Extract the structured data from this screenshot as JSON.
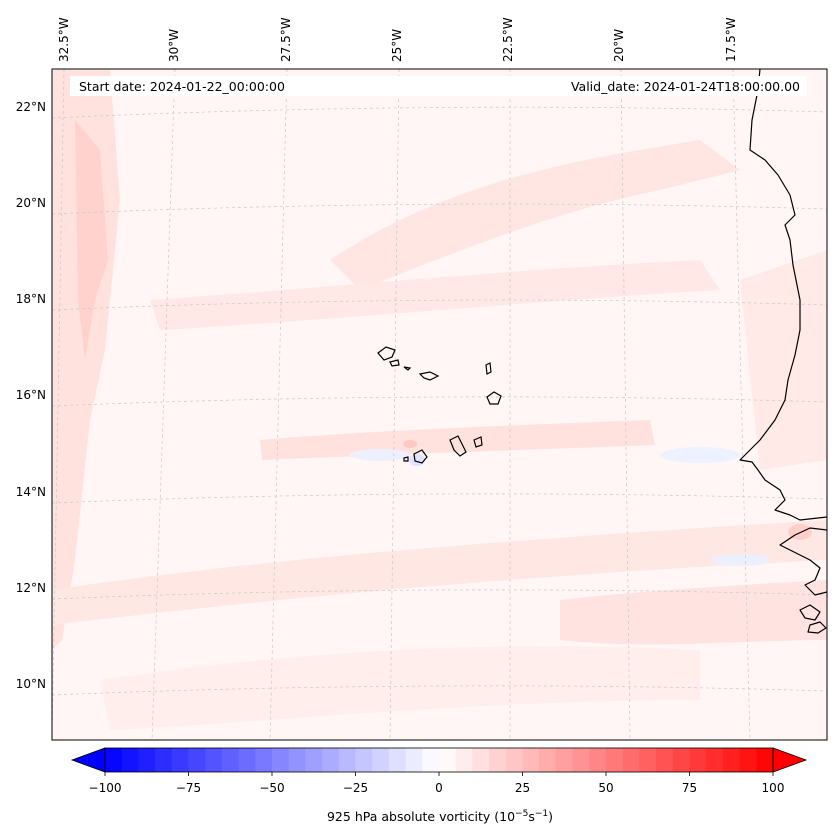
{
  "map": {
    "header": {
      "start_date": "Start date: 2024-01-22_00:00:00",
      "valid_date": "Valid_date: 2024-01-24T18:00:00.00"
    },
    "lon_labels": [
      "32.5°W",
      "30°W",
      "27.5°W",
      "25°W",
      "22.5°W",
      "20°W",
      "17.5°W"
    ],
    "lat_labels": [
      "22°N",
      "20°N",
      "18°N",
      "16°N",
      "14°N",
      "12°N",
      "10°N"
    ],
    "colors": {
      "coast": "#000000",
      "grid": "#c8c8c8",
      "background_field": "#fff5f4",
      "pos_anomaly": "#ffd6d2",
      "neg_anomaly": "#e8ecff"
    }
  },
  "colorbar": {
    "ticks": [
      "−100",
      "−75",
      "−50",
      "−25",
      "0",
      "25",
      "50",
      "75",
      "100"
    ],
    "label": "925 hPa absolute vorticity (10",
    "label_exp1": "−5",
    "label_mid": "s",
    "label_exp2": "−1",
    "label_end": ")",
    "min_color": "#0000ff",
    "mid_color": "#ffffff",
    "max_color": "#ff0000",
    "levels": 40
  }
}
